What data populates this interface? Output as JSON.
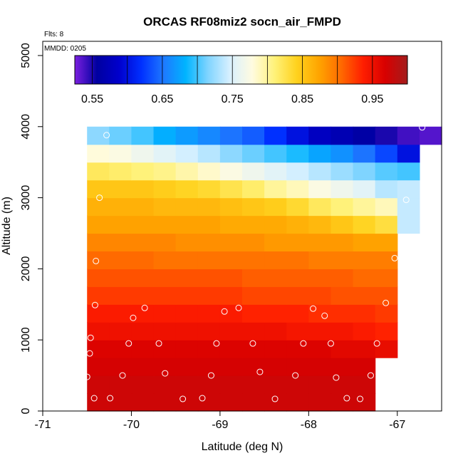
{
  "chart_data": {
    "type": "heatmap",
    "title": "ORCAS RF08miz2 socn_air_FMPD",
    "xlabel": "Latitude (deg N)",
    "ylabel": "Altitude (m)",
    "annotations": {
      "flights": "Flts: 8",
      "date": "MMDD: 0205"
    },
    "xlim": [
      -71,
      -66.5
    ],
    "ylim": [
      0,
      5200
    ],
    "x_ticks": [
      -71,
      -70,
      -69,
      -68,
      -67
    ],
    "x_tick_labels": [
      "-71",
      "-70",
      "-69",
      "-68",
      "-67"
    ],
    "y_ticks": [
      0,
      1000,
      2000,
      3000,
      4000,
      5000
    ],
    "y_tick_labels": [
      "0",
      "1000",
      "2000",
      "3000",
      "4000",
      "5000"
    ],
    "colorbar": {
      "range": [
        0.525,
        1.0
      ],
      "tick_values": [
        0.55,
        0.65,
        0.75,
        0.85,
        0.95
      ],
      "tick_labels": [
        "0.55",
        "0.65",
        "0.75",
        "0.85",
        "0.95"
      ],
      "colors": [
        "#7b1fe0",
        "#0000a0",
        "#0000cd",
        "#0030ff",
        "#1e78ff",
        "#00b4ff",
        "#7fd4ff",
        "#d8f0ff",
        "#fffbe0",
        "#fff27a",
        "#ffd21e",
        "#ffa500",
        "#ff6a00",
        "#ff1e00",
        "#d80000",
        "#a31d1d"
      ]
    },
    "lat_edges": [
      -70.5,
      -70.25,
      -70.0,
      -69.75,
      -69.5,
      -69.25,
      -69.0,
      -68.75,
      -68.5,
      -68.25,
      -68.0,
      -67.75,
      -67.5,
      -67.25,
      -67.0,
      -66.75,
      -66.5
    ],
    "alt_edges": [
      0,
      250,
      500,
      750,
      1000,
      1250,
      1500,
      1750,
      2000,
      2250,
      2500,
      2750,
      3000,
      3250,
      3500,
      3750,
      4000
    ],
    "row_extent": [
      13,
      13,
      13,
      14,
      14,
      14,
      14,
      14,
      14,
      14,
      15,
      15,
      15,
      15,
      15,
      16
    ],
    "values": [
      [
        0.975,
        0.975,
        0.975,
        0.975,
        0.975,
        0.975,
        0.975,
        0.975,
        0.975,
        0.975,
        0.975,
        0.975,
        0.975
      ],
      [
        0.975,
        0.975,
        0.975,
        0.975,
        0.975,
        0.975,
        0.975,
        0.975,
        0.975,
        0.975,
        0.975,
        0.975,
        0.975
      ],
      [
        0.97,
        0.97,
        0.97,
        0.97,
        0.97,
        0.97,
        0.97,
        0.97,
        0.97,
        0.97,
        0.97,
        0.97,
        0.97
      ],
      [
        0.965,
        0.965,
        0.965,
        0.965,
        0.965,
        0.965,
        0.965,
        0.965,
        0.965,
        0.965,
        0.965,
        0.96,
        0.96,
        0.955
      ],
      [
        0.95,
        0.95,
        0.95,
        0.95,
        0.95,
        0.95,
        0.95,
        0.95,
        0.95,
        0.945,
        0.945,
        0.945,
        0.94,
        0.935
      ],
      [
        0.94,
        0.94,
        0.94,
        0.94,
        0.94,
        0.94,
        0.94,
        0.935,
        0.935,
        0.935,
        0.93,
        0.93,
        0.93,
        0.925
      ],
      [
        0.925,
        0.925,
        0.925,
        0.925,
        0.925,
        0.925,
        0.925,
        0.92,
        0.92,
        0.92,
        0.92,
        0.915,
        0.915,
        0.915
      ],
      [
        0.915,
        0.915,
        0.915,
        0.915,
        0.915,
        0.915,
        0.915,
        0.91,
        0.91,
        0.91,
        0.91,
        0.91,
        0.905,
        0.905
      ],
      [
        0.905,
        0.905,
        0.905,
        0.9,
        0.9,
        0.9,
        0.9,
        0.9,
        0.9,
        0.9,
        0.895,
        0.895,
        0.895,
        0.895
      ],
      [
        0.89,
        0.89,
        0.89,
        0.89,
        0.885,
        0.885,
        0.885,
        0.885,
        0.88,
        0.88,
        0.88,
        0.88,
        0.875,
        0.875
      ],
      [
        0.875,
        0.875,
        0.875,
        0.875,
        0.875,
        0.875,
        0.87,
        0.87,
        0.87,
        0.865,
        0.86,
        0.85,
        0.84,
        0.83,
        0.74
      ],
      [
        0.865,
        0.865,
        0.865,
        0.86,
        0.86,
        0.86,
        0.855,
        0.85,
        0.845,
        0.835,
        0.82,
        0.81,
        0.8,
        0.79,
        0.74
      ],
      [
        0.85,
        0.85,
        0.85,
        0.845,
        0.84,
        0.835,
        0.825,
        0.815,
        0.8,
        0.79,
        0.775,
        0.765,
        0.755,
        0.735,
        0.74
      ],
      [
        0.82,
        0.815,
        0.81,
        0.805,
        0.795,
        0.785,
        0.775,
        0.765,
        0.755,
        0.745,
        0.735,
        0.725,
        0.715,
        0.705,
        0.7
      ],
      [
        0.78,
        0.775,
        0.765,
        0.755,
        0.745,
        0.735,
        0.72,
        0.71,
        0.7,
        0.69,
        0.675,
        0.665,
        0.65,
        0.63,
        0.6
      ],
      [
        0.72,
        0.71,
        0.7,
        0.68,
        0.67,
        0.66,
        0.65,
        0.64,
        0.62,
        0.6,
        0.58,
        0.57,
        0.56,
        0.55,
        0.54,
        0.535
      ]
    ],
    "points": [
      [
        -70.5,
        480
      ],
      [
        -70.42,
        180
      ],
      [
        -70.24,
        180
      ],
      [
        -70.1,
        500
      ],
      [
        -69.62,
        530
      ],
      [
        -69.42,
        170
      ],
      [
        -69.1,
        500
      ],
      [
        -69.2,
        180
      ],
      [
        -68.55,
        550
      ],
      [
        -68.38,
        170
      ],
      [
        -68.15,
        500
      ],
      [
        -67.69,
        470
      ],
      [
        -67.57,
        180
      ],
      [
        -67.42,
        170
      ],
      [
        -67.3,
        500
      ],
      [
        -70.47,
        810
      ],
      [
        -70.46,
        1030
      ],
      [
        -70.03,
        950
      ],
      [
        -69.69,
        950
      ],
      [
        -69.04,
        950
      ],
      [
        -68.63,
        950
      ],
      [
        -68.06,
        950
      ],
      [
        -67.75,
        950
      ],
      [
        -67.23,
        950
      ],
      [
        -70.41,
        1490
      ],
      [
        -69.98,
        1310
      ],
      [
        -69.85,
        1450
      ],
      [
        -68.95,
        1400
      ],
      [
        -68.79,
        1450
      ],
      [
        -67.95,
        1440
      ],
      [
        -67.82,
        1340
      ],
      [
        -67.13,
        1520
      ],
      [
        -70.4,
        2110
      ],
      [
        -67.03,
        2150
      ],
      [
        -70.36,
        3000
      ],
      [
        -66.9,
        2970
      ],
      [
        -70.28,
        3880
      ],
      [
        -66.72,
        3990
      ]
    ]
  }
}
